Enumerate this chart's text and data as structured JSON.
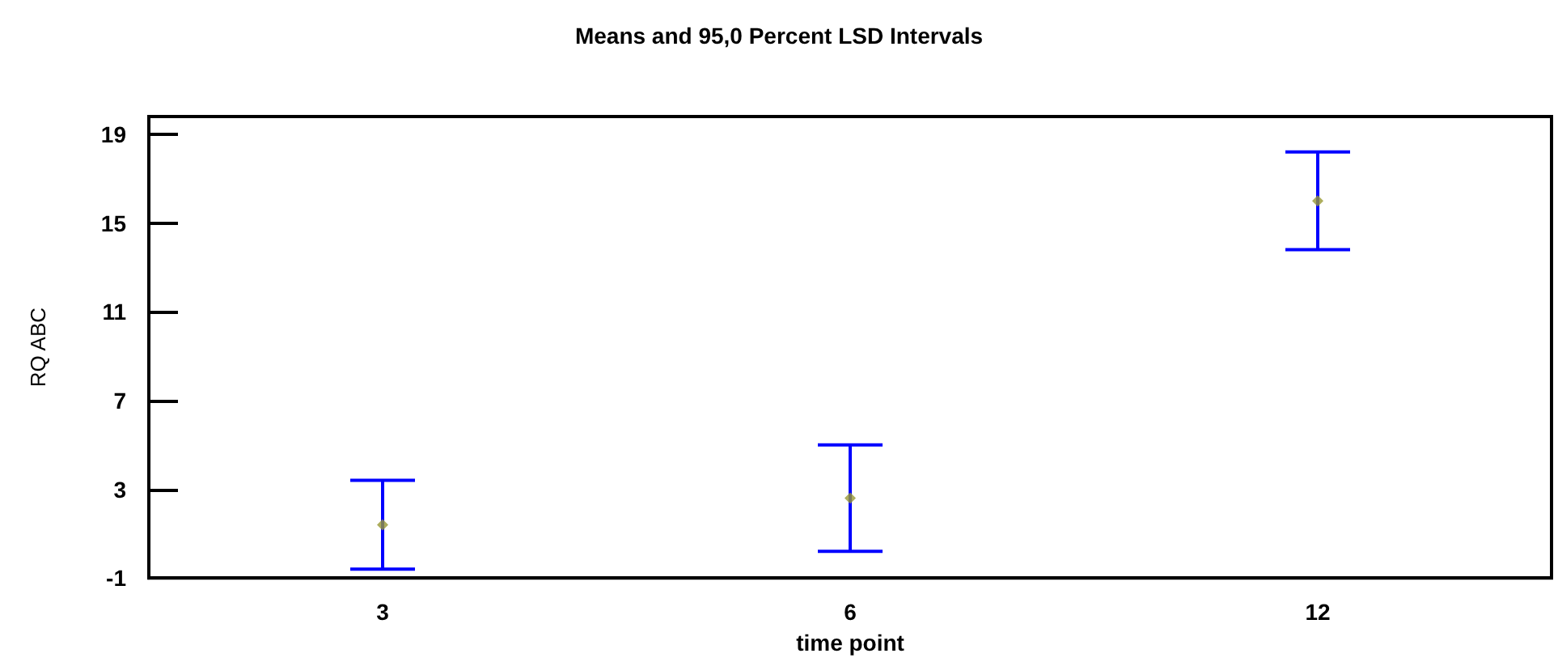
{
  "chart_data": {
    "type": "scatter",
    "title": "Means and 95,0 Percent LSD Intervals",
    "xlabel": "time point",
    "ylabel": "RQ ABC",
    "categories": [
      "3",
      "6",
      "12"
    ],
    "series": [
      {
        "color": "#999933",
        "values": [
          1.4,
          2.6,
          16.0
        ],
        "errors": [
          2.0,
          2.4,
          2.2
        ]
      }
    ],
    "ylim": [
      -1,
      19.8
    ],
    "yticks": [
      -1,
      3,
      7,
      11,
      15,
      19
    ],
    "grid": false,
    "marker": "diamond"
  }
}
